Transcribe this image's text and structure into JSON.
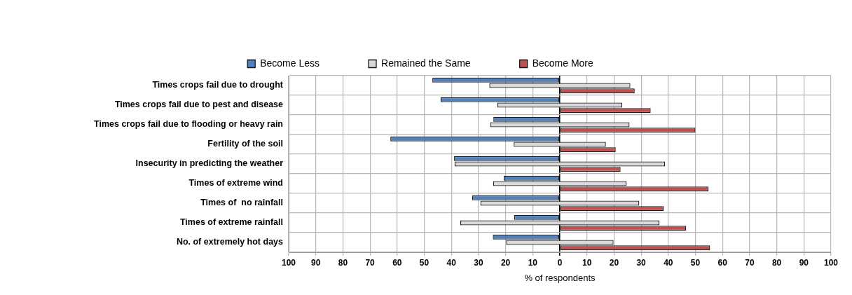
{
  "chart_data": {
    "type": "bar",
    "orientation": "horizontal",
    "xlabel": "% of respondents",
    "categories": [
      "Times crops fail due to drought",
      "Times crops fail due to pest and disease",
      "Times crops fail due to flooding or heavy rain",
      "Fertility of the soil",
      "Insecurity in predicting the weather",
      "Times of extreme wind",
      "Times of  no rainfall",
      "Times of extreme rainfall",
      "No. of extremely hot days"
    ],
    "series": [
      {
        "name": "Become Less",
        "color": "#4f81bd",
        "values": [
          -47,
          -44,
          -24.5,
          -62.5,
          -39,
          -20.7,
          -32.3,
          -16.8,
          -24.7
        ]
      },
      {
        "name": "Remained the Same",
        "color": "#d9d9d9",
        "base": [
          -26,
          -23,
          -25.7,
          -17,
          -38.8,
          -24.6,
          -29.3,
          -36.7,
          -19.8
        ],
        "values": [
          52,
          46,
          51.4,
          34,
          77.6,
          49.2,
          58.6,
          73.4,
          39.6
        ]
      },
      {
        "name": "Become More",
        "color": "#c0504d",
        "values": [
          27.6,
          33.5,
          50,
          20.6,
          22.4,
          54.8,
          38.3,
          46.6,
          55.4
        ]
      }
    ],
    "xlim": [
      -100,
      100
    ],
    "xticks": [
      {
        "value": -100,
        "label": "100"
      },
      {
        "value": -90,
        "label": "90"
      },
      {
        "value": -80,
        "label": "80"
      },
      {
        "value": -70,
        "label": "70"
      },
      {
        "value": -60,
        "label": "60"
      },
      {
        "value": -50,
        "label": "50"
      },
      {
        "value": -40,
        "label": "40"
      },
      {
        "value": -30,
        "label": "30"
      },
      {
        "value": -20,
        "label": "20"
      },
      {
        "value": -10,
        "label": "10"
      },
      0,
      10,
      20,
      30,
      40,
      50,
      60,
      70,
      80,
      90,
      100
    ],
    "grid": true,
    "legend": "top"
  }
}
